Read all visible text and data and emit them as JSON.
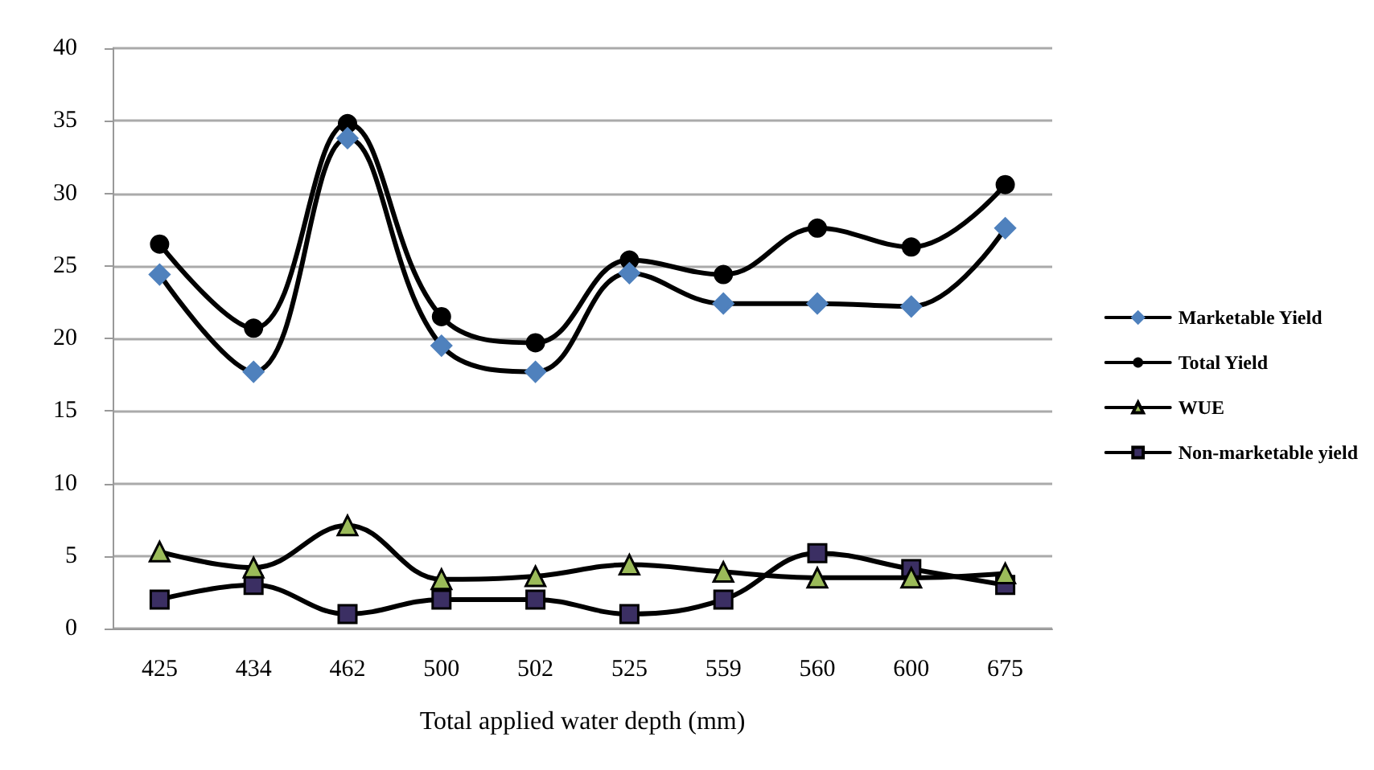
{
  "chart_data": {
    "type": "line",
    "xlabel": "Total applied water depth (mm)",
    "categories": [
      "425",
      "434",
      "462",
      "500",
      "502",
      "525",
      "559",
      "560",
      "600",
      "675"
    ],
    "series": [
      {
        "name": "Marketable Yield",
        "color": "#4f81bd",
        "marker": "diamond",
        "values": [
          24.4,
          17.7,
          33.8,
          19.5,
          17.7,
          24.5,
          22.4,
          22.4,
          22.2,
          27.6
        ]
      },
      {
        "name": "Total Yield",
        "color": "#000000",
        "marker": "circle",
        "values": [
          26.5,
          20.7,
          34.8,
          21.5,
          19.7,
          25.4,
          24.4,
          27.6,
          26.3,
          30.6
        ]
      },
      {
        "name": "WUE",
        "color": "#9bbb59",
        "marker": "triangle",
        "values": [
          5.3,
          4.2,
          7.1,
          3.4,
          3.6,
          4.4,
          3.9,
          3.5,
          3.5,
          3.8
        ]
      },
      {
        "name": "Non-marketable yield",
        "color": "#3b2f63",
        "marker": "square",
        "values": [
          2.0,
          3.0,
          1.0,
          2.0,
          2.0,
          1.0,
          2.0,
          5.2,
          4.1,
          3.0
        ]
      }
    ],
    "ylim": [
      0,
      40
    ],
    "yticks": [
      0,
      5,
      10,
      15,
      20,
      25,
      30,
      35,
      40
    ],
    "grid": "y",
    "legend": "right",
    "line_style": "solid"
  }
}
